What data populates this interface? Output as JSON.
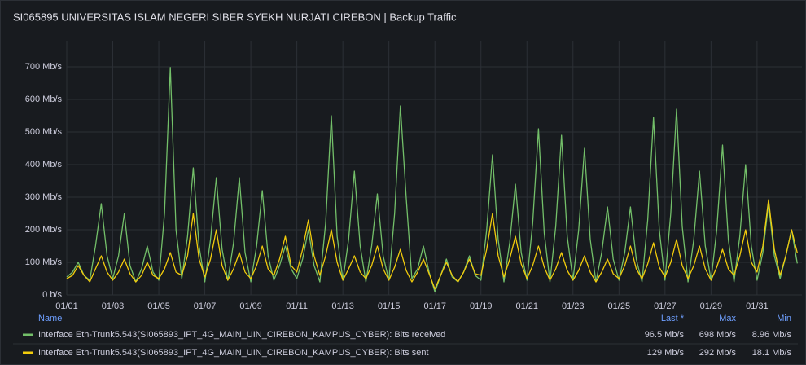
{
  "chart_data": {
    "type": "line",
    "title": "SI065895 UNIVERSITAS ISLAM NEGERI SIBER SYEKH NURJATI CIREBON | Backup Traffic",
    "x": [
      0,
      0.25,
      0.5,
      0.75,
      1,
      1.25,
      1.5,
      1.75,
      2,
      2.25,
      2.5,
      2.75,
      3,
      3.25,
      3.5,
      3.75,
      4,
      4.25,
      4.5,
      4.75,
      5,
      5.25,
      5.5,
      5.75,
      6,
      6.25,
      6.5,
      6.75,
      7,
      7.25,
      7.5,
      7.75,
      8,
      8.25,
      8.5,
      8.75,
      9,
      9.25,
      9.5,
      9.75,
      10,
      10.25,
      10.5,
      10.75,
      11,
      11.25,
      11.5,
      11.75,
      12,
      12.25,
      12.5,
      12.75,
      13,
      13.25,
      13.5,
      13.75,
      14,
      14.25,
      14.5,
      14.75,
      15,
      15.25,
      15.5,
      15.75,
      16,
      16.25,
      16.5,
      16.75,
      17,
      17.25,
      17.5,
      17.75,
      18,
      18.25,
      18.5,
      18.75,
      19,
      19.25,
      19.5,
      19.75,
      20,
      20.25,
      20.5,
      20.75,
      21,
      21.25,
      21.5,
      21.75,
      22,
      22.25,
      22.5,
      22.75,
      23,
      23.25,
      23.5,
      23.75,
      24,
      24.25,
      24.5,
      24.75,
      25,
      25.25,
      25.5,
      25.75,
      26,
      26.25,
      26.5,
      26.75,
      27,
      27.25,
      27.5,
      27.75,
      28,
      28.25,
      28.5,
      28.75,
      29,
      29.25,
      29.5,
      29.75,
      30,
      30.25,
      30.5,
      30.75,
      31,
      31.25,
      31.5,
      31.75
    ],
    "series": [
      {
        "name": "Interface Eth-Trunk5.543(SI065893_IPT_4G_MAIN_UIN_CIREBON_KAMPUS_CYBER): Bits received",
        "color": "#73bf69",
        "values": [
          55,
          70,
          100,
          60,
          45,
          150,
          280,
          120,
          50,
          120,
          250,
          90,
          40,
          80,
          150,
          70,
          45,
          250,
          698,
          200,
          50,
          180,
          390,
          150,
          40,
          170,
          360,
          140,
          45,
          160,
          360,
          130,
          40,
          150,
          320,
          120,
          45,
          90,
          150,
          80,
          50,
          110,
          200,
          90,
          40,
          220,
          550,
          180,
          45,
          170,
          380,
          150,
          40,
          150,
          310,
          120,
          45,
          250,
          580,
          300,
          50,
          80,
          150,
          70,
          8.96,
          60,
          110,
          55,
          40,
          70,
          120,
          60,
          45,
          200,
          430,
          170,
          40,
          160,
          340,
          130,
          45,
          220,
          510,
          190,
          40,
          210,
          490,
          180,
          45,
          200,
          450,
          170,
          40,
          130,
          270,
          110,
          45,
          130,
          270,
          110,
          40,
          230,
          545,
          200,
          45,
          250,
          570,
          210,
          40,
          170,
          380,
          150,
          45,
          200,
          460,
          170,
          40,
          180,
          400,
          150,
          45,
          130,
          280,
          120,
          50,
          120,
          200,
          96.5
        ],
        "legend_values": [
          {
            "value": 96.5,
            "label": "96.5 Mb/s"
          },
          {
            "value": 698,
            "label": "698 Mb/s"
          },
          {
            "value": 8.96,
            "label": "8.96 Mb/s"
          }
        ]
      },
      {
        "name": "Interface Eth-Trunk5.543(SI065893_IPT_4G_MAIN_UIN_CIREBON_KAMPUS_CYBER): Bits sent",
        "color": "#f2cc0c",
        "values": [
          50,
          60,
          90,
          60,
          40,
          80,
          120,
          70,
          45,
          70,
          110,
          65,
          40,
          60,
          100,
          60,
          50,
          80,
          130,
          70,
          60,
          120,
          250,
          110,
          55,
          110,
          200,
          90,
          45,
          80,
          130,
          70,
          50,
          90,
          150,
          80,
          60,
          110,
          180,
          90,
          70,
          140,
          230,
          120,
          60,
          120,
          200,
          100,
          45,
          80,
          120,
          70,
          50,
          90,
          150,
          80,
          45,
          85,
          140,
          75,
          40,
          70,
          110,
          65,
          18.1,
          60,
          100,
          60,
          40,
          70,
          110,
          65,
          60,
          140,
          250,
          120,
          55,
          110,
          180,
          95,
          50,
          90,
          150,
          85,
          45,
          80,
          130,
          75,
          45,
          75,
          120,
          70,
          40,
          70,
          110,
          65,
          50,
          90,
          150,
          80,
          50,
          95,
          160,
          85,
          55,
          100,
          170,
          90,
          50,
          90,
          150,
          80,
          45,
          85,
          140,
          80,
          60,
          120,
          200,
          100,
          70,
          150,
          292,
          140,
          60,
          120,
          200,
          129
        ],
        "legend_values": [
          {
            "value": 129,
            "label": "129 Mb/s"
          },
          {
            "value": 292,
            "label": "292 Mb/s"
          },
          {
            "value": 18.1,
            "label": "18.1 Mb/s"
          }
        ]
      }
    ],
    "xlim": [
      0,
      31.95
    ],
    "xticks": [
      {
        "value": 0,
        "label": "01/01"
      },
      {
        "value": 2,
        "label": "01/03"
      },
      {
        "value": 4,
        "label": "01/05"
      },
      {
        "value": 6,
        "label": "01/07"
      },
      {
        "value": 8,
        "label": "01/09"
      },
      {
        "value": 10,
        "label": "01/11"
      },
      {
        "value": 12,
        "label": "01/13"
      },
      {
        "value": 14,
        "label": "01/15"
      },
      {
        "value": 16,
        "label": "01/17"
      },
      {
        "value": 18,
        "label": "01/19"
      },
      {
        "value": 20,
        "label": "01/21"
      },
      {
        "value": 22,
        "label": "01/23"
      },
      {
        "value": 24,
        "label": "01/25"
      },
      {
        "value": 26,
        "label": "01/27"
      },
      {
        "value": 28,
        "label": "01/29"
      },
      {
        "value": 30,
        "label": "01/31"
      }
    ],
    "ylim": [
      0,
      780
    ],
    "yticks": [
      {
        "value": 0,
        "label": "0 b/s"
      },
      {
        "value": 100,
        "label": "100 Mb/s"
      },
      {
        "value": 200,
        "label": "200 Mb/s"
      },
      {
        "value": 300,
        "label": "300 Mb/s"
      },
      {
        "value": 400,
        "label": "400 Mb/s"
      },
      {
        "value": 500,
        "label": "500 Mb/s"
      },
      {
        "value": 600,
        "label": "600 Mb/s"
      },
      {
        "value": 700,
        "label": "700 Mb/s"
      }
    ],
    "grid": true,
    "legend_columns": [
      "Name",
      "Last *",
      "Max",
      "Min"
    ]
  }
}
